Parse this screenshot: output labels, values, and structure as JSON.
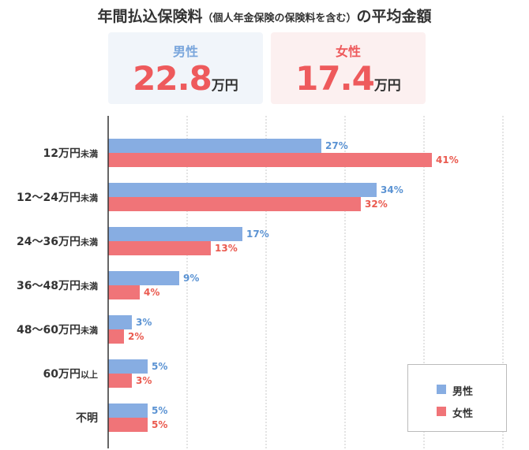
{
  "title": {
    "main": "年間払込保険料",
    "paren": "（個人年金保険の保険料を含む）",
    "tail": "の平均金額"
  },
  "cards": {
    "male": {
      "label": "男性",
      "value": "22.8",
      "unit": "万円"
    },
    "female": {
      "label": "女性",
      "value": "17.4",
      "unit": "万円"
    }
  },
  "colors": {
    "male": "#87ade2",
    "female": "#f07478",
    "male_label": "#5b93d3",
    "female_label": "#ea5a4f"
  },
  "chart_data": {
    "type": "bar",
    "orientation": "horizontal",
    "categories": [
      {
        "main": "12万円",
        "suffix": "未満"
      },
      {
        "main": "12～24万円",
        "suffix": "未満"
      },
      {
        "main": "24～36万円",
        "suffix": "未満"
      },
      {
        "main": "36～48万円",
        "suffix": "未満"
      },
      {
        "main": "48～60万円",
        "suffix": "未満"
      },
      {
        "main": "60万円",
        "suffix": "以上"
      },
      {
        "main": "不明",
        "suffix": ""
      }
    ],
    "series": [
      {
        "name": "男性",
        "values": [
          27,
          34,
          17,
          9,
          3,
          5,
          5
        ],
        "labels": [
          "27%",
          "34%",
          "17%",
          "9%",
          "3%",
          "5%",
          "5%"
        ]
      },
      {
        "name": "女性",
        "values": [
          41,
          32,
          13,
          4,
          2,
          3,
          5
        ],
        "labels": [
          "41%",
          "32%",
          "13%",
          "4%",
          "2%",
          "3%",
          "5%"
        ]
      }
    ],
    "xlim": [
      0,
      50
    ],
    "grid": true,
    "legend": "bottom-right"
  }
}
